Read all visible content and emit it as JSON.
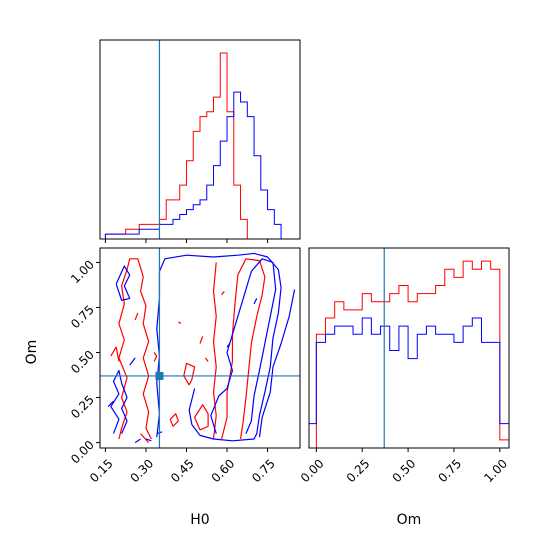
{
  "chart_data": {
    "type": "corner",
    "parameters": [
      "H0",
      "Om"
    ],
    "colors": {
      "series_1": "#ff0000",
      "series_2": "#0000ff",
      "truth": "#1f77b4"
    },
    "truth": {
      "H0": 0.35,
      "Om": 0.37
    },
    "panels": {
      "hist_H0": {
        "type": "step-histogram",
        "xlim": [
          0.13,
          0.87
        ],
        "bin_edges": [
          0.15,
          0.175,
          0.2,
          0.225,
          0.25,
          0.275,
          0.3,
          0.325,
          0.35,
          0.375,
          0.4,
          0.425,
          0.45,
          0.475,
          0.5,
          0.525,
          0.55,
          0.575,
          0.6,
          0.625,
          0.65,
          0.675,
          0.7,
          0.725,
          0.75,
          0.775,
          0.8,
          0.825,
          0.85
        ],
        "series": [
          {
            "color": "#ff0000",
            "counts": [
              1,
              1,
              1,
              2,
              2,
              3,
              3,
              3,
              4,
              8,
              8,
              11,
              16,
              22,
              25,
              26,
              29,
              38,
              26,
              11,
              4,
              0,
              0,
              0,
              0,
              0,
              0,
              0
            ]
          },
          {
            "color": "#0000ff",
            "counts": [
              1,
              1,
              1,
              1,
              1,
              2,
              2,
              2,
              3,
              3,
              4,
              5,
              6,
              7,
              8,
              11,
              15,
              20,
              25,
              30,
              28,
              25,
              17,
              10,
              6,
              3,
              0,
              0
            ]
          }
        ]
      },
      "contour_H0_Om": {
        "type": "contour",
        "xlabel": "H0",
        "ylabel": "Om",
        "xlim": [
          0.13,
          0.87
        ],
        "ylim": [
          -0.03,
          1.08
        ],
        "xticks": [
          "0.15",
          "0.30",
          "0.45",
          "0.60",
          "0.75"
        ],
        "xtick_values": [
          0.15,
          0.3,
          0.45,
          0.6,
          0.75
        ],
        "yticks": [
          "0.00",
          "0.25",
          "0.50",
          "0.75",
          "1.00"
        ],
        "ytick_values": [
          0.0,
          0.25,
          0.5,
          0.75,
          1.0
        ],
        "series": [
          {
            "color": "#ff0000",
            "contours": [
              [
                [
                  0.2,
                  0.02
                ],
                [
                  0.21,
                  0.08
                ],
                [
                  0.23,
                  0.17
                ],
                [
                  0.21,
                  0.25
                ],
                [
                  0.23,
                  0.36
                ],
                [
                  0.2,
                  0.47
                ],
                [
                  0.22,
                  0.57
                ],
                [
                  0.2,
                  0.66
                ],
                [
                  0.22,
                  0.77
                ],
                [
                  0.21,
                  0.87
                ],
                [
                  0.23,
                  0.96
                ],
                [
                  0.24,
                  1.02
                ],
                [
                  0.27,
                  1.02
                ],
                [
                  0.29,
                  0.92
                ],
                [
                  0.28,
                  0.84
                ],
                [
                  0.3,
                  0.76
                ],
                [
                  0.29,
                  0.66
                ],
                [
                  0.31,
                  0.56
                ],
                [
                  0.29,
                  0.47
                ],
                [
                  0.31,
                  0.37
                ],
                [
                  0.29,
                  0.27
                ],
                [
                  0.31,
                  0.17
                ],
                [
                  0.3,
                  0.08
                ],
                [
                  0.32,
                  0.02
                ]
              ],
              [
                [
                  0.55,
                  0.02
                ],
                [
                  0.56,
                  0.15
                ],
                [
                  0.55,
                  0.28
                ],
                [
                  0.56,
                  0.42
                ],
                [
                  0.55,
                  0.56
                ],
                [
                  0.56,
                  0.7
                ],
                [
                  0.55,
                  0.84
                ],
                [
                  0.56,
                  1.0
                ]
              ],
              [
                [
                  0.58,
                  0.02
                ],
                [
                  0.6,
                  0.14
                ],
                [
                  0.6,
                  0.28
                ],
                [
                  0.62,
                  0.45
                ],
                [
                  0.62,
                  0.6
                ],
                [
                  0.63,
                  0.78
                ],
                [
                  0.64,
                  0.93
                ],
                [
                  0.67,
                  1.02
                ],
                [
                  0.72,
                  1.01
                ],
                [
                  0.74,
                  0.92
                ],
                [
                  0.73,
                  0.82
                ],
                [
                  0.71,
                  0.7
                ],
                [
                  0.69,
                  0.55
                ],
                [
                  0.68,
                  0.4
                ],
                [
                  0.67,
                  0.25
                ],
                [
                  0.66,
                  0.12
                ],
                [
                  0.65,
                  0.02
                ]
              ],
              [
                [
                  0.5,
                  0.07
                ],
                [
                  0.48,
                  0.14
                ],
                [
                  0.51,
                  0.21
                ],
                [
                  0.53,
                  0.16
                ],
                [
                  0.53,
                  0.09
                ],
                [
                  0.5,
                  0.07
                ]
              ],
              [
                [
                  0.46,
                  0.32
                ],
                [
                  0.44,
                  0.37
                ],
                [
                  0.45,
                  0.44
                ],
                [
                  0.48,
                  0.42
                ],
                [
                  0.47,
                  0.35
                ],
                [
                  0.46,
                  0.32
                ]
              ],
              [
                [
                  0.4,
                  0.09
                ],
                [
                  0.39,
                  0.13
                ],
                [
                  0.41,
                  0.16
                ],
                [
                  0.42,
                  0.12
                ],
                [
                  0.4,
                  0.09
                ]
              ],
              [
                [
                  0.33,
                  0.45
                ],
                [
                  0.34,
                  0.48
                ],
                [
                  0.33,
                  0.5
                ]
              ],
              [
                [
                  0.26,
                  0.68
                ],
                [
                  0.27,
                  0.72
                ]
              ],
              [
                [
                  0.58,
                  0.82
                ],
                [
                  0.59,
                  0.84
                ]
              ],
              [
                [
                  0.5,
                  0.55
                ],
                [
                  0.51,
                  0.59
                ]
              ],
              [
                [
                  0.42,
                  0.67
                ],
                [
                  0.43,
                  0.66
                ]
              ],
              [
                [
                  0.53,
                  0.45
                ],
                [
                  0.52,
                  0.47
                ]
              ],
              [
                [
                  0.17,
                  0.48
                ],
                [
                  0.19,
                  0.53
                ],
                [
                  0.2,
                  0.45
                ]
              ],
              [
                [
                  0.28,
                  0.05
                ],
                [
                  0.31,
                  0.0
                ]
              ]
            ]
          },
          {
            "color": "#0000ff",
            "contours": [
              [
                [
                  0.34,
                  0.03
                ],
                [
                  0.35,
                  0.16
                ],
                [
                  0.34,
                  0.33
                ],
                [
                  0.35,
                  0.48
                ],
                [
                  0.34,
                  0.63
                ],
                [
                  0.35,
                  0.8
                ],
                [
                  0.35,
                  0.95
                ],
                [
                  0.37,
                  1.02
                ],
                [
                  0.45,
                  1.04
                ],
                [
                  0.55,
                  1.03
                ],
                [
                  0.64,
                  1.04
                ],
                [
                  0.7,
                  1.05
                ],
                [
                  0.75,
                  1.03
                ],
                [
                  0.79,
                  0.96
                ],
                [
                  0.8,
                  0.86
                ],
                [
                  0.79,
                  0.72
                ],
                [
                  0.77,
                  0.58
                ],
                [
                  0.76,
                  0.42
                ],
                [
                  0.74,
                  0.28
                ],
                [
                  0.72,
                  0.15
                ],
                [
                  0.71,
                  0.05
                ],
                [
                  0.7,
                  0.02
                ],
                [
                  0.62,
                  0.01
                ],
                [
                  0.55,
                  0.02
                ],
                [
                  0.5,
                  0.04
                ],
                [
                  0.47,
                  0.1
                ],
                [
                  0.46,
                  0.18
                ],
                [
                  0.48,
                  0.3
                ]
              ],
              [
                [
                  0.56,
                  0.05
                ],
                [
                  0.54,
                  0.15
                ],
                [
                  0.57,
                  0.26
                ],
                [
                  0.6,
                  0.3
                ],
                [
                  0.62,
                  0.4
                ],
                [
                  0.6,
                  0.5
                ],
                [
                  0.63,
                  0.65
                ],
                [
                  0.66,
                  0.8
                ],
                [
                  0.69,
                  0.95
                ],
                [
                  0.73,
                  1.02
                ],
                [
                  0.77,
                  1.0
                ],
                [
                  0.78,
                  0.85
                ],
                [
                  0.76,
                  0.7
                ],
                [
                  0.74,
                  0.55
                ],
                [
                  0.72,
                  0.4
                ],
                [
                  0.7,
                  0.26
                ],
                [
                  0.69,
                  0.12
                ],
                [
                  0.67,
                  0.05
                ]
              ],
              [
                [
                  0.72,
                  0.03
                ],
                [
                  0.73,
                  0.14
                ],
                [
                  0.76,
                  0.28
                ],
                [
                  0.77,
                  0.42
                ],
                [
                  0.8,
                  0.55
                ],
                [
                  0.83,
                  0.7
                ],
                [
                  0.85,
                  0.85
                ]
              ],
              [
                [
                  0.18,
                  0.05
                ],
                [
                  0.2,
                  0.13
                ],
                [
                  0.17,
                  0.2
                ],
                [
                  0.2,
                  0.27
                ],
                [
                  0.18,
                  0.34
                ],
                [
                  0.2,
                  0.4
                ],
                [
                  0.21,
                  0.33
                ],
                [
                  0.23,
                  0.25
                ],
                [
                  0.21,
                  0.19
                ],
                [
                  0.23,
                  0.12
                ],
                [
                  0.21,
                  0.05
                ]
              ],
              [
                [
                  0.19,
                  0.88
                ],
                [
                  0.22,
                  0.98
                ],
                [
                  0.24,
                  0.93
                ],
                [
                  0.22,
                  0.87
                ],
                [
                  0.24,
                  0.8
                ],
                [
                  0.21,
                  0.79
                ],
                [
                  0.19,
                  0.88
                ]
              ],
              [
                [
                  0.16,
                  0.2
                ],
                [
                  0.18,
                  0.23
                ]
              ],
              [
                [
                  0.24,
                  0.43
                ],
                [
                  0.26,
                  0.47
                ]
              ],
              [
                [
                  0.6,
                  0.53
                ],
                [
                  0.61,
                  0.55
                ]
              ],
              [
                [
                  0.7,
                  0.77
                ],
                [
                  0.71,
                  0.8
                ]
              ],
              [
                [
                  0.34,
                  0.05
                ],
                [
                  0.36,
                  0.06
                ]
              ],
              [
                [
                  0.3,
                  0.02
                ],
                [
                  0.32,
                  0.01
                ]
              ],
              [
                [
                  0.26,
                  0.0
                ],
                [
                  0.28,
                  0.02
                ]
              ]
            ]
          }
        ]
      },
      "hist_Om": {
        "type": "step-histogram",
        "xlabel": "Om",
        "xlim": [
          -0.04,
          1.05
        ],
        "xticks": [
          "0.00",
          "0.25",
          "0.50",
          "0.75",
          "1.00"
        ],
        "xtick_values": [
          0.0,
          0.25,
          0.5,
          0.75,
          1.0
        ],
        "bin_edges": [
          -0.04,
          0.0,
          0.05,
          0.1,
          0.15,
          0.2,
          0.25,
          0.3,
          0.35,
          0.4,
          0.45,
          0.5,
          0.55,
          0.6,
          0.65,
          0.7,
          0.75,
          0.8,
          0.85,
          0.9,
          0.95,
          1.0,
          1.05
        ],
        "series": [
          {
            "color": "#ff0000",
            "counts": [
              0,
              14,
              16,
              18,
              17,
              17,
              19,
              18,
              18,
              19,
              20,
              18,
              19,
              19,
              20,
              22,
              21,
              23,
              22,
              23,
              22,
              1
            ]
          },
          {
            "color": "#0000ff",
            "counts": [
              3,
              13,
              14,
              15,
              15,
              14,
              16,
              14,
              15,
              12,
              15,
              11,
              14,
              15,
              14,
              14,
              13,
              15,
              16,
              13,
              13,
              3
            ]
          }
        ]
      }
    }
  }
}
